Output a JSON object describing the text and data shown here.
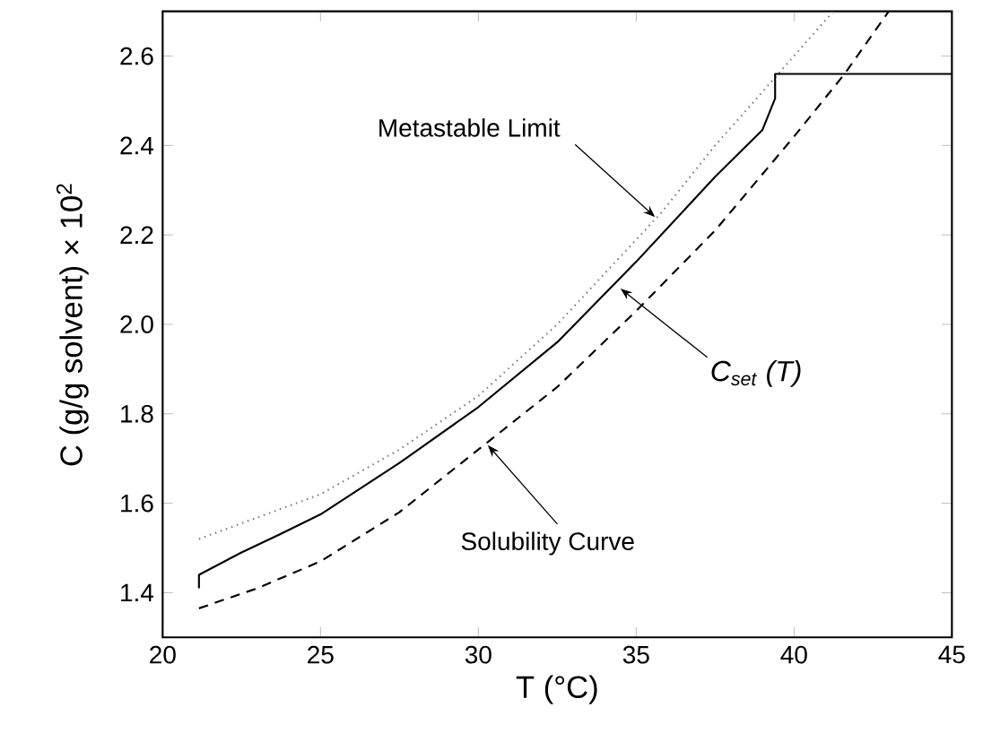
{
  "chart_data": {
    "type": "line",
    "xlabel": "T (°C)",
    "ylabel": "C (g/g solvent) × 10$^{2}$",
    "xlim": [
      20,
      45
    ],
    "ylim": [
      1.3,
      2.7
    ],
    "xticks": [
      20,
      25,
      30,
      35,
      40,
      45
    ],
    "yticks": [
      1.4,
      1.6,
      1.8,
      {
        "value": 2,
        "label": "2.0"
      },
      2.2,
      2.4,
      2.6
    ],
    "grid": false,
    "legend": false,
    "series": [
      {
        "color": "#808080",
        "line_style": "dotted",
        "x": [
          21.15,
          25,
          27.5,
          30,
          32.5,
          35.8,
          37.5,
          39,
          41.24
        ],
        "values": [
          1.52,
          1.62,
          1.72,
          1.84,
          2.0,
          2.25,
          2.4,
          2.52,
          2.7
        ]
      },
      {
        "color": "#000000",
        "line_style": "solid",
        "x": [
          21.15,
          21.15,
          22.5,
          23.7,
          25,
          27.5,
          30,
          32.5,
          35,
          37.5,
          39,
          39.4,
          39.4,
          45
        ],
        "values": [
          1.41,
          1.44,
          1.49,
          1.53,
          1.575,
          1.69,
          1.815,
          1.96,
          2.14,
          2.33,
          2.435,
          2.505,
          2.56,
          2.56
        ]
      },
      {
        "color": "#000000",
        "line_style": "dashed",
        "x": [
          21.15,
          23,
          25,
          27.5,
          30,
          32.5,
          35,
          37.5,
          40,
          41.6,
          43
        ],
        "values": [
          1.365,
          1.41,
          1.47,
          1.58,
          1.72,
          1.86,
          2.03,
          2.21,
          2.42,
          2.56,
          2.7
        ]
      }
    ],
    "annotations": [
      {
        "text": "Metastable Limit",
        "x": 35.6,
        "y": 2.24
      },
      {
        "text": "*C*$_{set}$ *(T)*",
        "x": 34.5,
        "y": 2.08
      },
      {
        "text": "Solubility Curve",
        "x": 30.3,
        "y": 1.73
      }
    ]
  }
}
